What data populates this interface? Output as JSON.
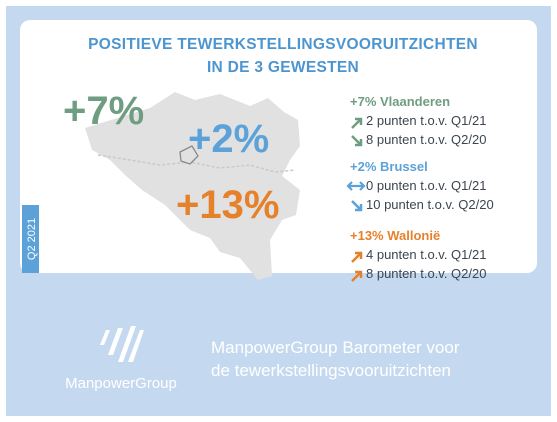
{
  "header": {
    "title": [
      "POSITIEVE TEWERKSTELLINGSVOORUITZICHTEN",
      "IN DE 3 GEWESTEN"
    ]
  },
  "map_labels": [
    "+7%",
    "+2%",
    "+13%"
  ],
  "regions": [
    {
      "name": "+7% Vlaanderen",
      "lines": [
        "2 punten t.o.v. Q1/21",
        "8 punten t.o.v. Q2/20"
      ]
    },
    {
      "name": "+2% Brussel",
      "lines": [
        "0 punten t.o.v. Q1/21",
        "10 punten t.o.v. Q2/20"
      ]
    },
    {
      "name": "+13% Wallonië",
      "lines": [
        "4 punten t.o.v. Q1/21",
        "8 punten t.o.v. Q2/20"
      ]
    }
  ],
  "tab": "Q2 2021",
  "footer": {
    "brand": "ManpowerGroup",
    "tagline": [
      "ManpowerGroup Barometer voor",
      "de tewerkstellingsvooruitzichten"
    ]
  }
}
